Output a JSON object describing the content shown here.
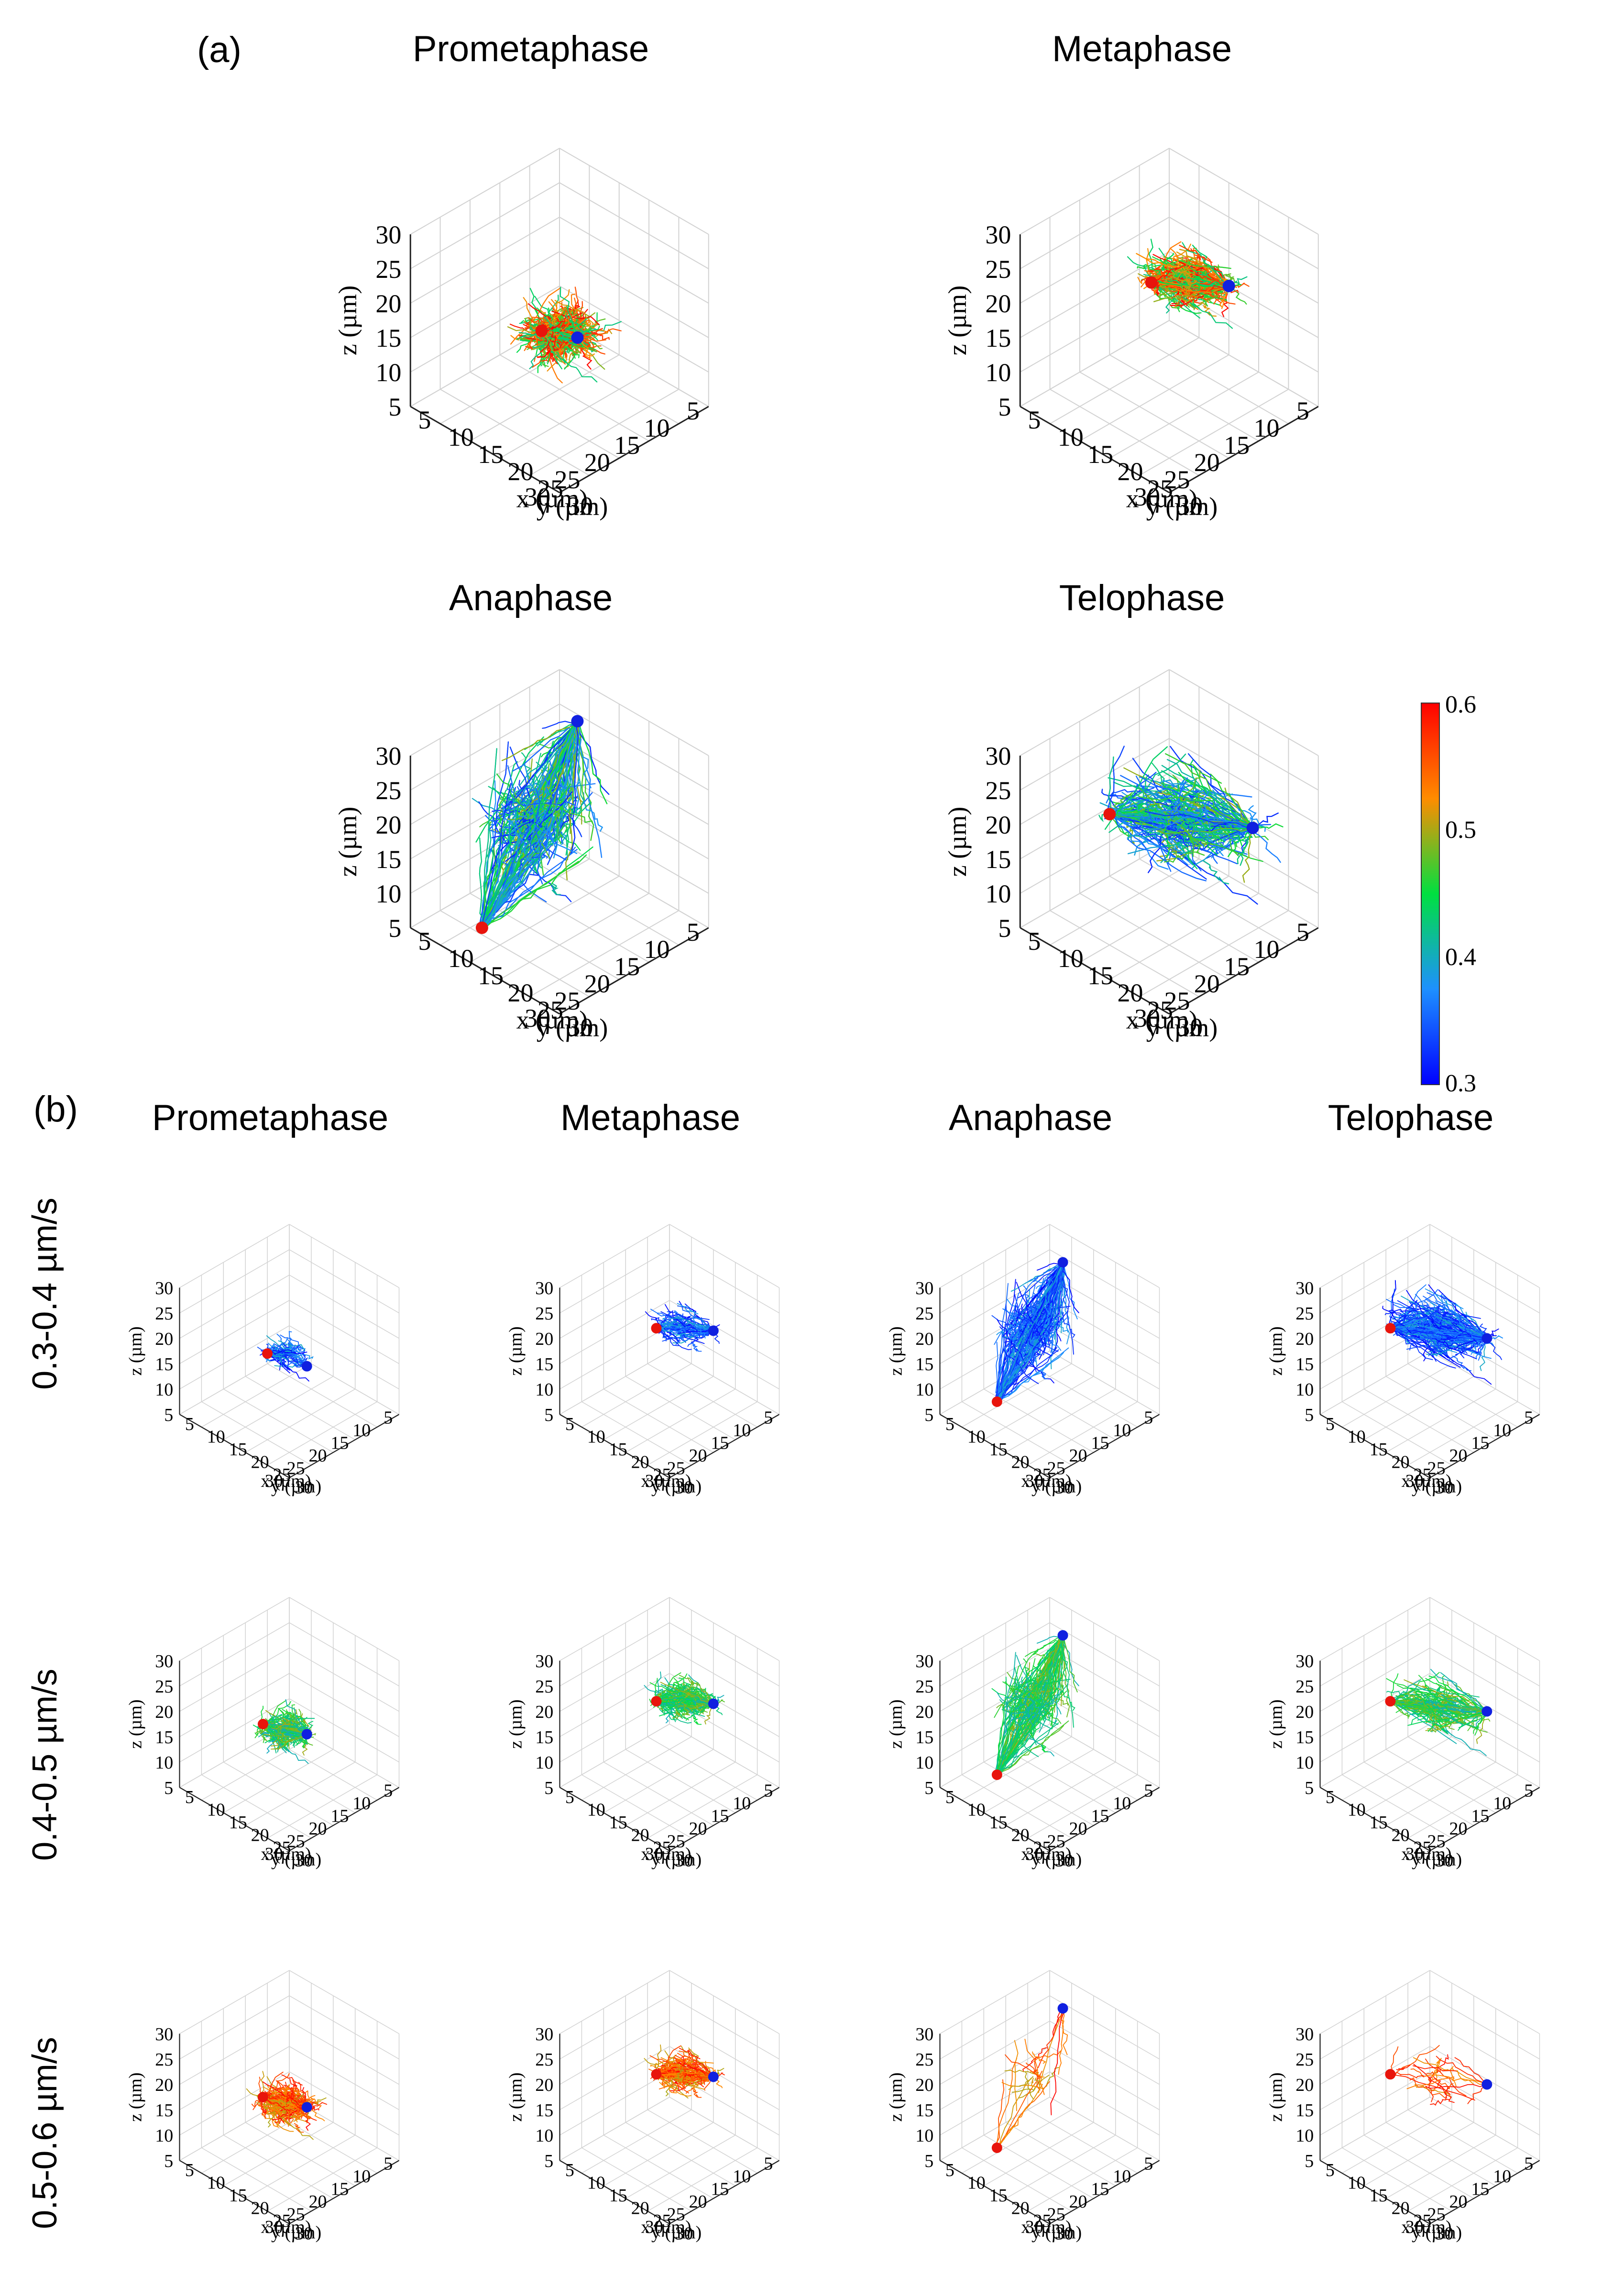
{
  "figure": {
    "panel_a_label": "(a)",
    "panel_b_label": "(b)",
    "phases": [
      "Prometaphase",
      "Metaphase",
      "Anaphase",
      "Telophase"
    ],
    "speed_bins": [
      "0.3-0.4 µm/s",
      "0.4-0.5 µm/s",
      "0.5-0.6 µm/s"
    ]
  },
  "chart_data": {
    "type": "scatter",
    "plot_kind": "3D microtubule trajectory plots (line segments colored by speed)",
    "axes": {
      "xlabel": "x (µm)",
      "ylabel": "y (µm)",
      "zlabel": "z (µm)",
      "x_ticks": [
        "5",
        "10",
        "15",
        "20",
        "25",
        "30"
      ],
      "y_ticks": [
        "5",
        "10",
        "15",
        "20",
        "25",
        "30"
      ],
      "z_ticks": [
        "5",
        "10",
        "15",
        "20",
        "25",
        "30"
      ],
      "xlim": [
        5,
        30
      ],
      "ylim": [
        5,
        30
      ],
      "zlim": [
        5,
        30
      ]
    },
    "colorbar": {
      "min": 0.3,
      "max": 0.6,
      "tick_labels": [
        "0.6",
        "0.5",
        "0.4",
        "0.3"
      ],
      "colors": [
        "#ff0000",
        "#ff8c00",
        "#00e040",
        "#1e90ff",
        "#0000ff"
      ]
    },
    "pole_colors": {
      "pole_1": "#e8140c",
      "pole_2": "#1020e0"
    },
    "panels": [
      {
        "section": "a",
        "phase": "Prometaphase",
        "speed_bin": "all",
        "pole_1": {
          "x": 15,
          "y": 12,
          "z": 12
        },
        "pole_2": {
          "x": 14,
          "y": 17,
          "z": 13
        },
        "cloud": {
          "cx": 15,
          "cy": 15,
          "cz": 13,
          "spread": [
            6,
            6,
            4
          ],
          "density": 1.0
        }
      },
      {
        "section": "a",
        "phase": "Metaphase",
        "speed_bin": "all",
        "pole_1": {
          "x": 14,
          "y": 11,
          "z": 18
        },
        "pole_2": {
          "x": 12,
          "y": 22,
          "z": 22
        },
        "cloud": {
          "cx": 13,
          "cy": 16,
          "cz": 20,
          "spread": [
            5,
            7,
            3
          ],
          "density": 1.0
        }
      },
      {
        "section": "a",
        "phase": "Anaphase",
        "speed_bin": "all",
        "pole_1": {
          "x": 27,
          "y": 14,
          "z": 8
        },
        "pole_2": {
          "x": 10,
          "y": 13,
          "z": 29
        },
        "cloud": {
          "cx": 17,
          "cy": 13,
          "cz": 18,
          "spread": [
            8,
            6,
            10
          ],
          "density": 1.4
        }
      },
      {
        "section": "a",
        "phase": "Telophase",
        "speed_bin": "all",
        "pole_1": {
          "x": 17,
          "y": 7,
          "z": 16
        },
        "pole_2": {
          "x": 12,
          "y": 26,
          "z": 21
        },
        "cloud": {
          "cx": 14,
          "cy": 16,
          "cz": 18,
          "spread": [
            8,
            12,
            6
          ],
          "density": 1.6
        }
      },
      {
        "section": "b",
        "phase": "Prometaphase",
        "speed_bin": "0.3-0.4 µm/s",
        "pole_1": {
          "x": 16,
          "y": 11,
          "z": 13
        },
        "pole_2": {
          "x": 13,
          "y": 17,
          "z": 12
        },
        "cloud": {
          "cx": 15,
          "cy": 14,
          "cz": 14,
          "spread": [
            4,
            5,
            3
          ],
          "density": 0.35
        }
      },
      {
        "section": "b",
        "phase": "Metaphase",
        "speed_bin": "0.3-0.4 µm/s",
        "pole_1": {
          "x": 14,
          "y": 11,
          "z": 17
        },
        "pole_2": {
          "x": 11,
          "y": 21,
          "z": 20
        },
        "cloud": {
          "cx": 13,
          "cy": 16,
          "cz": 19,
          "spread": [
            4,
            6,
            3
          ],
          "density": 0.45
        }
      },
      {
        "section": "b",
        "phase": "Anaphase",
        "speed_bin": "0.3-0.4 µm/s",
        "pole_1": {
          "x": 26,
          "y": 14,
          "z": 10
        },
        "pole_2": {
          "x": 10,
          "y": 13,
          "z": 29
        },
        "cloud": {
          "cx": 17,
          "cy": 13,
          "cz": 19,
          "spread": [
            7,
            5,
            9
          ],
          "density": 1.2
        }
      },
      {
        "section": "b",
        "phase": "Telophase",
        "speed_bin": "0.3-0.4 µm/s",
        "pole_1": {
          "x": 16,
          "y": 7,
          "z": 16
        },
        "pole_2": {
          "x": 12,
          "y": 25,
          "z": 21
        },
        "cloud": {
          "cx": 14,
          "cy": 16,
          "cz": 19,
          "spread": [
            6,
            11,
            5
          ],
          "density": 1.3
        }
      },
      {
        "section": "b",
        "phase": "Prometaphase",
        "speed_bin": "0.4-0.5 µm/s",
        "pole_1": {
          "x": 16,
          "y": 10,
          "z": 13
        },
        "pole_2": {
          "x": 13,
          "y": 17,
          "z": 13
        },
        "cloud": {
          "cx": 15,
          "cy": 14,
          "cz": 13,
          "spread": [
            5,
            5,
            4
          ],
          "density": 0.8
        }
      },
      {
        "section": "b",
        "phase": "Metaphase",
        "speed_bin": "0.4-0.5 µm/s",
        "pole_1": {
          "x": 14,
          "y": 11,
          "z": 17
        },
        "pole_2": {
          "x": 11,
          "y": 21,
          "z": 20
        },
        "cloud": {
          "cx": 13,
          "cy": 16,
          "cz": 19,
          "spread": [
            5,
            6,
            3
          ],
          "density": 0.8
        }
      },
      {
        "section": "b",
        "phase": "Anaphase",
        "speed_bin": "0.4-0.5 µm/s",
        "pole_1": {
          "x": 26,
          "y": 14,
          "z": 10
        },
        "pole_2": {
          "x": 10,
          "y": 13,
          "z": 29
        },
        "cloud": {
          "cx": 17,
          "cy": 13,
          "cz": 19,
          "spread": [
            7,
            5,
            9
          ],
          "density": 1.0
        }
      },
      {
        "section": "b",
        "phase": "Telophase",
        "speed_bin": "0.4-0.5 µm/s",
        "pole_1": {
          "x": 16,
          "y": 7,
          "z": 16
        },
        "pole_2": {
          "x": 12,
          "y": 25,
          "z": 21
        },
        "cloud": {
          "cx": 14,
          "cy": 16,
          "cz": 18,
          "spread": [
            6,
            10,
            4
          ],
          "density": 0.7
        }
      },
      {
        "section": "b",
        "phase": "Prometaphase",
        "speed_bin": "0.5-0.6 µm/s",
        "pole_1": {
          "x": 16,
          "y": 10,
          "z": 13
        },
        "pole_2": {
          "x": 13,
          "y": 17,
          "z": 13
        },
        "cloud": {
          "cx": 15,
          "cy": 14,
          "cz": 13,
          "spread": [
            5,
            6,
            4
          ],
          "density": 0.9
        }
      },
      {
        "section": "b",
        "phase": "Metaphase",
        "speed_bin": "0.5-0.6 µm/s",
        "pole_1": {
          "x": 14,
          "y": 11,
          "z": 17
        },
        "pole_2": {
          "x": 11,
          "y": 21,
          "z": 20
        },
        "cloud": {
          "cx": 13,
          "cy": 16,
          "cz": 19,
          "spread": [
            5,
            6,
            3
          ],
          "density": 0.7
        }
      },
      {
        "section": "b",
        "phase": "Anaphase",
        "speed_bin": "0.5-0.6 µm/s",
        "pole_1": {
          "x": 26,
          "y": 14,
          "z": 10
        },
        "pole_2": {
          "x": 10,
          "y": 13,
          "z": 29
        },
        "cloud": {
          "cx": 17,
          "cy": 13,
          "cz": 19,
          "spread": [
            7,
            5,
            9
          ],
          "density": 0.12
        }
      },
      {
        "section": "b",
        "phase": "Telophase",
        "speed_bin": "0.5-0.6 µm/s",
        "pole_1": {
          "x": 16,
          "y": 7,
          "z": 16
        },
        "pole_2": {
          "x": 12,
          "y": 25,
          "z": 21
        },
        "cloud": {
          "cx": 14,
          "cy": 16,
          "cz": 18,
          "spread": [
            6,
            10,
            4
          ],
          "density": 0.12
        }
      }
    ]
  }
}
